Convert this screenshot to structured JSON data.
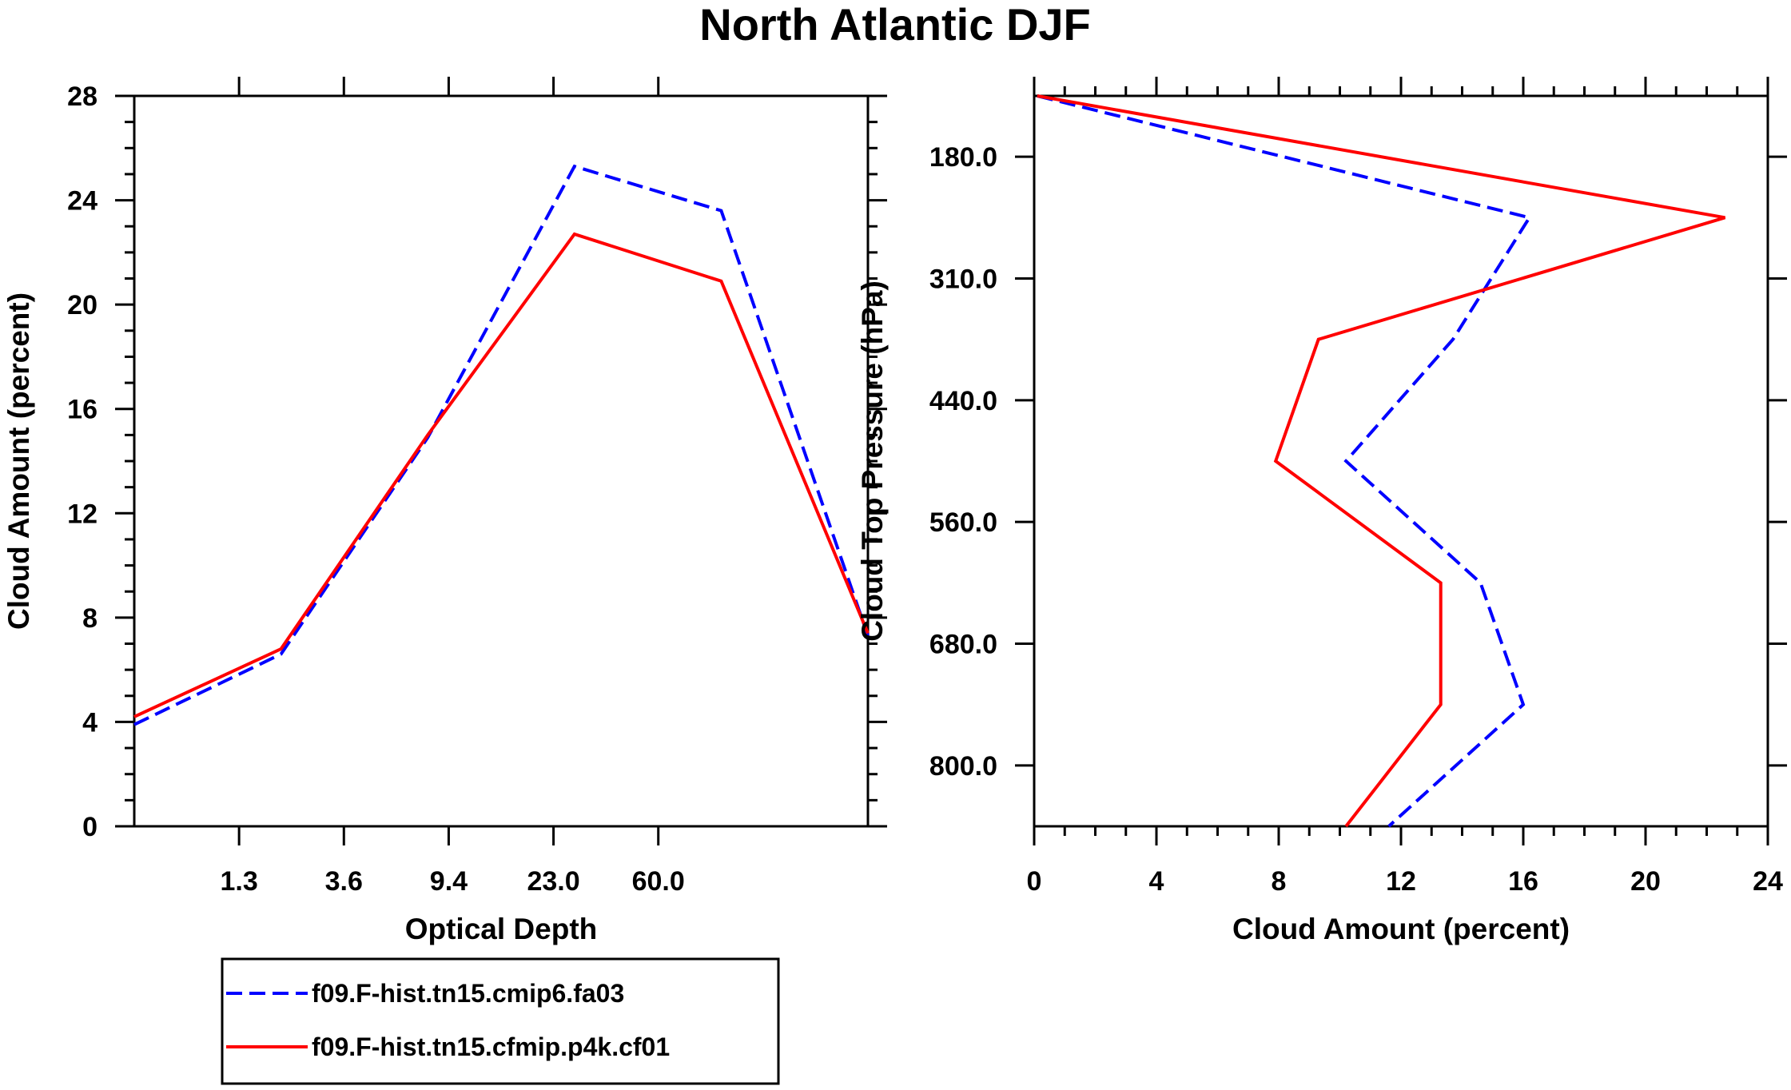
{
  "title": "North Atlantic DJF",
  "colors": {
    "series1": "#0000ff",
    "series2": "#ff0000",
    "axis": "#000000"
  },
  "legend": {
    "entries": [
      {
        "label": "f09.F-hist.tn15.cmip6.fa03",
        "color": "#0000ff",
        "dash": true
      },
      {
        "label": "f09.F-hist.tn15.cfmip.p4k.cf01",
        "color": "#ff0000",
        "dash": false
      }
    ]
  },
  "chart_data": [
    {
      "type": "line",
      "title": "",
      "xlabel": "Optical Depth",
      "ylabel": "Cloud Amount (percent)",
      "x_tick_labels": [
        "1.3",
        "3.6",
        "9.4",
        "23.0",
        "60.0"
      ],
      "y_tick_labels": [
        "0",
        "4",
        "8",
        "12",
        "16",
        "20",
        "24",
        "28"
      ],
      "ylim": [
        0,
        28
      ],
      "x_bins": [
        0.5,
        1.5,
        2.5,
        3.5,
        4.5,
        5.5,
        6.5
      ],
      "xlim": [
        0,
        7
      ],
      "series": [
        {
          "name": "f09.F-hist.tn15.cmip6.fa03",
          "values": [
            3.9,
            6.6,
            14.9,
            25.3,
            23.6,
            7.3
          ],
          "x": [
            0,
            1,
            2,
            3,
            4,
            5
          ]
        },
        {
          "name": "f09.F-hist.tn15.cfmip.p4k.cf01",
          "values": [
            4.2,
            6.8,
            15.0,
            22.7,
            20.9,
            7.4
          ],
          "x": [
            0,
            1,
            2,
            3,
            4,
            5
          ]
        }
      ]
    },
    {
      "type": "line",
      "title": "",
      "xlabel": "Cloud Amount (percent)",
      "ylabel": "Cloud Top Pressure (hPa)",
      "x_tick_labels": [
        "0",
        "4",
        "8",
        "12",
        "16",
        "20",
        "24"
      ],
      "y_tick_labels": [
        "180.0",
        "310.0",
        "440.0",
        "560.0",
        "680.0",
        "800.0"
      ],
      "xlim": [
        0,
        24
      ],
      "pressure_levels_hPa": [
        180.0,
        310.0,
        440.0,
        560.0,
        680.0,
        800.0
      ],
      "series": [
        {
          "name": "f09.F-hist.tn15.cmip6.fa03",
          "values": [
            0.1,
            16.2,
            13.7,
            10.2,
            14.6,
            16.0,
            11.6
          ]
        },
        {
          "name": "f09.F-hist.tn15.cfmip.p4k.cf01",
          "values": [
            0.1,
            22.6,
            9.3,
            7.9,
            13.3,
            13.3,
            10.2
          ]
        }
      ]
    }
  ]
}
